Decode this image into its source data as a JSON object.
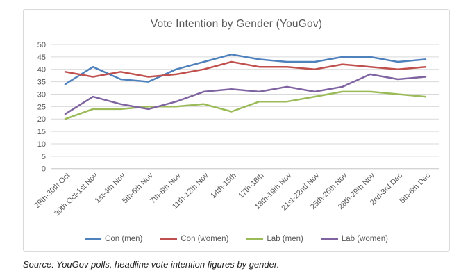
{
  "chart": {
    "source_note": "Source: YouGov polls, headline vote intention figures by gender."
  },
  "chart_data": {
    "type": "line",
    "title": "Vote Intention by Gender (YouGov)",
    "xlabel": "",
    "ylabel": "",
    "ylim": [
      0,
      50
    ],
    "ytick_step": 5,
    "grid": true,
    "legend_position": "bottom",
    "grid_color": "#d9d9d9",
    "axis_text_color": "#595959",
    "categories": [
      "29th-30th Oct",
      "30th Oct-1st Nov",
      "1st-4th Nov",
      "5th-6th Nov",
      "7th-8th Nov",
      "11th-12th Nov",
      "14th-15th",
      "17th-18th",
      "18th-19th Nov",
      "21st-22nd Nov",
      "25th-26th Nov",
      "28th-29th Nov",
      "2nd-3rd Dec",
      "5th-6th Dec"
    ],
    "series": [
      {
        "name": "Con (men)",
        "color": "#4F81BD",
        "values": [
          34,
          41,
          36,
          35,
          40,
          43,
          46,
          44,
          43,
          43,
          45,
          45,
          43,
          44
        ]
      },
      {
        "name": "Con (women)",
        "color": "#C0504D",
        "values": [
          39,
          37,
          39,
          37,
          38,
          40,
          43,
          41,
          41,
          40,
          42,
          41,
          40,
          41
        ]
      },
      {
        "name": "Lab (men)",
        "color": "#9BBB59",
        "values": [
          20,
          24,
          24,
          25,
          25,
          26,
          23,
          27,
          27,
          29,
          31,
          31,
          30,
          29
        ]
      },
      {
        "name": "Lab (women)",
        "color": "#8064A2",
        "values": [
          22,
          29,
          26,
          24,
          27,
          31,
          32,
          31,
          33,
          31,
          33,
          38,
          36,
          37
        ]
      }
    ]
  }
}
